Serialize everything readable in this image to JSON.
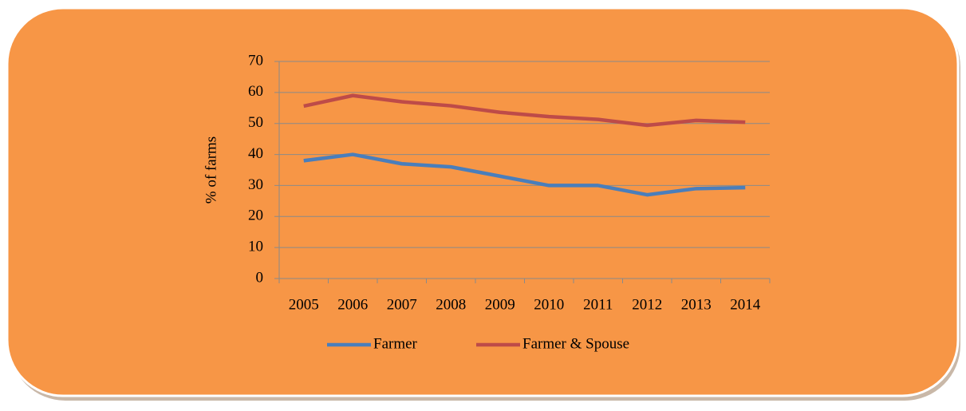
{
  "chart_data": {
    "type": "line",
    "y_label": "% of farms",
    "categories": [
      "2005",
      "2006",
      "2007",
      "2008",
      "2009",
      "2010",
      "2011",
      "2012",
      "2013",
      "2014"
    ],
    "series": [
      {
        "name": "Farmer",
        "color": "#4a7ebb",
        "values": [
          38,
          40,
          37,
          36,
          33,
          30,
          30,
          27,
          29,
          29.3
        ]
      },
      {
        "name": "Farmer & Spouse",
        "color": "#be4b48",
        "values": [
          55.6,
          59,
          57,
          55.7,
          53.6,
          52.2,
          51.3,
          49.4,
          51,
          50.4
        ]
      }
    ],
    "ylim": [
      0,
      70
    ],
    "yticks": [
      0,
      10,
      20,
      30,
      40,
      50,
      60,
      70
    ],
    "grid": true,
    "legend": "bottom"
  }
}
